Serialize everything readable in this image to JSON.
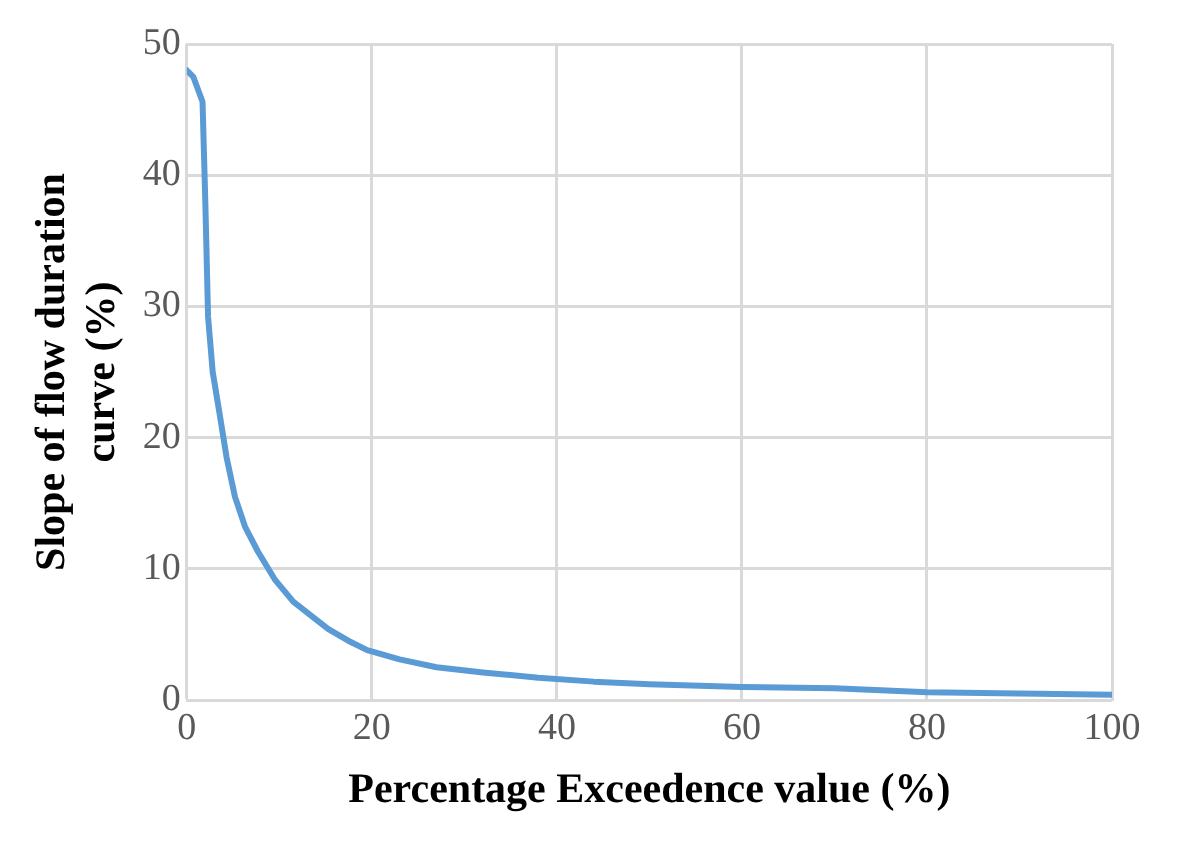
{
  "chart_data": {
    "type": "line",
    "xlabel": "Percentage Exceedence value (%)",
    "ylabel": "Slope of flow duration curve (%)",
    "x": [
      0,
      0.7,
      1.7,
      2,
      2.3,
      2.8,
      3.5,
      4.3,
      5.2,
      6.3,
      7.7,
      9.5,
      11.5,
      13.5,
      15.3,
      17.5,
      19.5,
      23,
      27,
      32,
      38,
      44,
      50,
      60,
      70,
      80,
      90,
      100
    ],
    "series": [
      {
        "color": "#5b9bd5",
        "values": [
          48,
          47.5,
          45.6,
          38,
          29.2,
          25,
          22,
          18.5,
          15.5,
          13.2,
          11.3,
          9.2,
          7.5,
          6.4,
          5.4,
          4.5,
          3.8,
          3.1,
          2.5,
          2.1,
          1.7,
          1.4,
          1.2,
          1,
          0.9,
          0.6,
          0.5,
          0.4
        ]
      }
    ],
    "xlim": [
      0,
      100
    ],
    "xticks": [
      0,
      20,
      40,
      60,
      80,
      100
    ],
    "ylim": [
      0,
      50
    ],
    "yticks": [
      0,
      10,
      20,
      30,
      40,
      50
    ],
    "grid": true,
    "legend": false,
    "marker": "none",
    "line_style": "solid"
  }
}
